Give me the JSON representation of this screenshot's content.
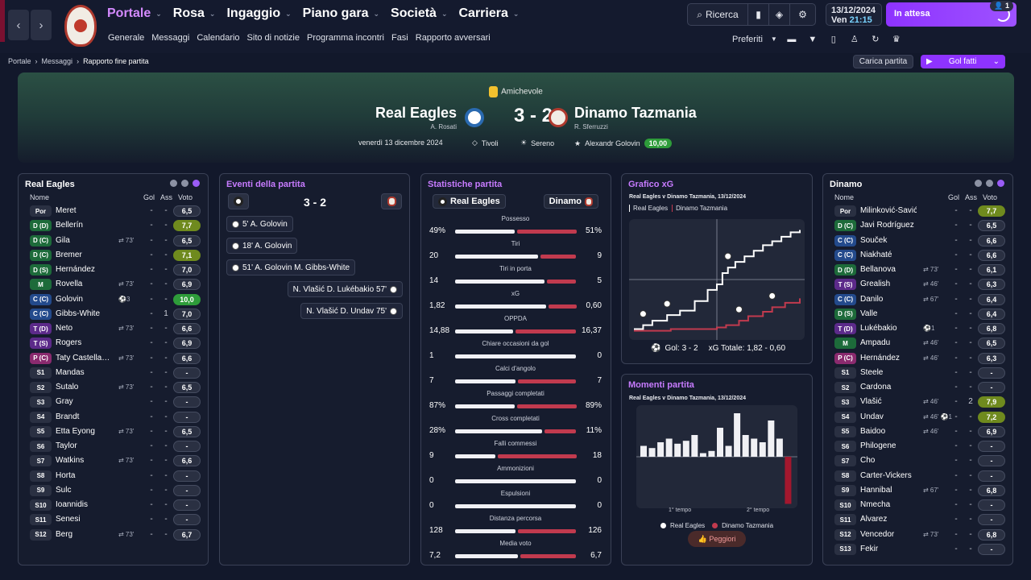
{
  "colors": {
    "accent": "#9a5cf6",
    "home": "#f0f0f4",
    "away": "#c13a4e"
  },
  "nav": {
    "back_icon": "chevron-left-icon",
    "forward_icon": "chevron-right-icon",
    "main": [
      "Portale",
      "Rosa",
      "Ingaggio",
      "Piano gara",
      "Società",
      "Carriera"
    ],
    "sub": [
      "Generale",
      "Messaggi",
      "Calendario",
      "Sito di notizie",
      "Programma incontri",
      "Fasi",
      "Rapporto avversari"
    ],
    "search_label": "Ricerca",
    "date": "13/12/2024",
    "day": "Ven",
    "time": "21:15",
    "waiting_label": "In attesa",
    "waiting_badge": "1",
    "prefs_label": "Preferiti"
  },
  "crumb": {
    "items": [
      "Portale",
      "Messaggi"
    ],
    "current": "Rapporto fine partita"
  },
  "actions": {
    "load_label": "Carica partita",
    "goals_label": "Gol fatti"
  },
  "match": {
    "competition": "Amichevole",
    "home": "Real Eagles",
    "home_manager": "A. Rosati",
    "away": "Dinamo Tazmania",
    "away_manager": "R. Sferruzzi",
    "score": "3 - 2",
    "date": "venerdì 13 dicembre 2024",
    "stadium": "Tivoli",
    "weather": "Sereno",
    "motm": "Alexandr Golovin",
    "motm_rating": "10,00"
  },
  "home_panel": {
    "title": "Real Eagles",
    "headers": {
      "name": "Nome",
      "goals": "Gol",
      "assists": "Ass",
      "rating": "Voto"
    },
    "players": [
      {
        "pos": "Por",
        "name": "Meret",
        "meta": "",
        "g": "-",
        "a": "-",
        "r": "6,5",
        "pc": "#2a3042",
        "rc": ""
      },
      {
        "pos": "D (D)",
        "name": "Bellerín",
        "meta": "",
        "g": "-",
        "a": "-",
        "r": "7,7",
        "pc": "#1d6b3a",
        "rc": "#6f8a1e"
      },
      {
        "pos": "D (C)",
        "name": "Gila",
        "meta": "⇄ 73'",
        "g": "-",
        "a": "-",
        "r": "6,5",
        "pc": "#1d6b3a",
        "rc": ""
      },
      {
        "pos": "D (C)",
        "name": "Bremer",
        "meta": "",
        "g": "-",
        "a": "-",
        "r": "7,1",
        "pc": "#1d6b3a",
        "rc": "#6f8a1e"
      },
      {
        "pos": "D (S)",
        "name": "Hernández",
        "meta": "",
        "g": "-",
        "a": "-",
        "r": "7,0",
        "pc": "#1d6b3a",
        "rc": ""
      },
      {
        "pos": "M",
        "name": "Rovella",
        "meta": "⇄ 73'",
        "g": "-",
        "a": "-",
        "r": "6,9",
        "pc": "#1d6b3a",
        "rc": ""
      },
      {
        "pos": "C (C)",
        "name": "Golovin",
        "meta": "⚽3",
        "g": "-",
        "a": "-",
        "r": "10,0",
        "pc": "#234a8c",
        "rc": "#2e9c3a"
      },
      {
        "pos": "C (C)",
        "name": "Gibbs-White",
        "meta": "",
        "g": "-",
        "a": "1",
        "r": "7,0",
        "pc": "#234a8c",
        "rc": ""
      },
      {
        "pos": "T (D)",
        "name": "Neto",
        "meta": "⇄ 73'",
        "g": "-",
        "a": "-",
        "r": "6,6",
        "pc": "#5c2a8a",
        "rc": ""
      },
      {
        "pos": "T (S)",
        "name": "Rogers",
        "meta": "",
        "g": "-",
        "a": "-",
        "r": "6,9",
        "pc": "#5c2a8a",
        "rc": ""
      },
      {
        "pos": "P (C)",
        "name": "Taty Castella…",
        "meta": "⇄ 73'",
        "g": "-",
        "a": "-",
        "r": "6,6",
        "pc": "#8a2a6e",
        "rc": ""
      },
      {
        "pos": "S1",
        "name": "Mandas",
        "meta": "",
        "g": "-",
        "a": "-",
        "r": "-",
        "pc": "#2a3042",
        "rc": ""
      },
      {
        "pos": "S2",
        "name": "Šutalo",
        "meta": "⇄ 73'",
        "g": "-",
        "a": "-",
        "r": "6,5",
        "pc": "#2a3042",
        "rc": ""
      },
      {
        "pos": "S3",
        "name": "Gray",
        "meta": "",
        "g": "-",
        "a": "-",
        "r": "-",
        "pc": "#2a3042",
        "rc": ""
      },
      {
        "pos": "S4",
        "name": "Brandt",
        "meta": "",
        "g": "-",
        "a": "-",
        "r": "-",
        "pc": "#2a3042",
        "rc": ""
      },
      {
        "pos": "S5",
        "name": "Etta Eyong",
        "meta": "⇄ 73'",
        "g": "-",
        "a": "-",
        "r": "6,5",
        "pc": "#2a3042",
        "rc": ""
      },
      {
        "pos": "S6",
        "name": "Taylor",
        "meta": "",
        "g": "-",
        "a": "-",
        "r": "-",
        "pc": "#2a3042",
        "rc": ""
      },
      {
        "pos": "S7",
        "name": "Watkins",
        "meta": "⇄ 73'",
        "g": "-",
        "a": "-",
        "r": "6,6",
        "pc": "#2a3042",
        "rc": ""
      },
      {
        "pos": "S8",
        "name": "Horta",
        "meta": "",
        "g": "-",
        "a": "-",
        "r": "-",
        "pc": "#2a3042",
        "rc": ""
      },
      {
        "pos": "S9",
        "name": "Šulc",
        "meta": "",
        "g": "-",
        "a": "-",
        "r": "-",
        "pc": "#2a3042",
        "rc": ""
      },
      {
        "pos": "S10",
        "name": "Ioannidis",
        "meta": "",
        "g": "-",
        "a": "-",
        "r": "-",
        "pc": "#2a3042",
        "rc": ""
      },
      {
        "pos": "S11",
        "name": "Senesi",
        "meta": "",
        "g": "-",
        "a": "-",
        "r": "-",
        "pc": "#2a3042",
        "rc": ""
      },
      {
        "pos": "S12",
        "name": "Berg",
        "meta": "⇄ 73'",
        "g": "-",
        "a": "-",
        "r": "6,7",
        "pc": "#2a3042",
        "rc": ""
      }
    ]
  },
  "away_panel": {
    "title": "Dinamo",
    "headers": {
      "name": "Nome",
      "goals": "Gol",
      "assists": "Ass",
      "rating": "Voto"
    },
    "players": [
      {
        "pos": "Por",
        "name": "Milinković-Savić",
        "meta": "",
        "g": "-",
        "a": "-",
        "r": "7,7",
        "pc": "#2a3042",
        "rc": "#6f8a1e"
      },
      {
        "pos": "D (C)",
        "name": "Javi Rodríguez",
        "meta": "",
        "g": "-",
        "a": "-",
        "r": "6,5",
        "pc": "#1d6b3a",
        "rc": ""
      },
      {
        "pos": "C (C)",
        "name": "Souček",
        "meta": "",
        "g": "-",
        "a": "-",
        "r": "6,6",
        "pc": "#234a8c",
        "rc": ""
      },
      {
        "pos": "C (C)",
        "name": "Niakhaté",
        "meta": "",
        "g": "-",
        "a": "-",
        "r": "6,6",
        "pc": "#234a8c",
        "rc": ""
      },
      {
        "pos": "D (D)",
        "name": "Bellanova",
        "meta": "⇄ 73'",
        "g": "-",
        "a": "-",
        "r": "6,1",
        "pc": "#1d6b3a",
        "rc": ""
      },
      {
        "pos": "T (S)",
        "name": "Grealish",
        "meta": "⇄ 46'",
        "g": "-",
        "a": "-",
        "r": "6,3",
        "pc": "#5c2a8a",
        "rc": ""
      },
      {
        "pos": "C (C)",
        "name": "Danilo",
        "meta": "⇄ 67'",
        "g": "-",
        "a": "-",
        "r": "6,4",
        "pc": "#234a8c",
        "rc": ""
      },
      {
        "pos": "D (S)",
        "name": "Valle",
        "meta": "",
        "g": "-",
        "a": "-",
        "r": "6,4",
        "pc": "#1d6b3a",
        "rc": ""
      },
      {
        "pos": "T (D)",
        "name": "Lukébakio",
        "meta": "⚽1",
        "g": "-",
        "a": "-",
        "r": "6,8",
        "pc": "#5c2a8a",
        "rc": ""
      },
      {
        "pos": "M",
        "name": "Ampadu",
        "meta": "⇄ 46'",
        "g": "-",
        "a": "-",
        "r": "6,5",
        "pc": "#1d6b3a",
        "rc": ""
      },
      {
        "pos": "P (C)",
        "name": "Hernández",
        "meta": "⇄ 46'",
        "g": "-",
        "a": "-",
        "r": "6,3",
        "pc": "#8a2a6e",
        "rc": ""
      },
      {
        "pos": "S1",
        "name": "Steele",
        "meta": "",
        "g": "-",
        "a": "-",
        "r": "-",
        "pc": "#2a3042",
        "rc": ""
      },
      {
        "pos": "S2",
        "name": "Cardona",
        "meta": "",
        "g": "-",
        "a": "-",
        "r": "-",
        "pc": "#2a3042",
        "rc": ""
      },
      {
        "pos": "S3",
        "name": "Vlašić",
        "meta": "⇄ 46'",
        "g": "-",
        "a": "2",
        "r": "7,9",
        "pc": "#2a3042",
        "rc": "#6f8a1e"
      },
      {
        "pos": "S4",
        "name": "Undav",
        "meta": "⇄ 46'  ⚽1",
        "g": "-",
        "a": "-",
        "r": "7,2",
        "pc": "#2a3042",
        "rc": "#6f8a1e"
      },
      {
        "pos": "S5",
        "name": "Baidoo",
        "meta": "⇄ 46'",
        "g": "-",
        "a": "-",
        "r": "6,9",
        "pc": "#2a3042",
        "rc": ""
      },
      {
        "pos": "S6",
        "name": "Philogene",
        "meta": "",
        "g": "-",
        "a": "-",
        "r": "-",
        "pc": "#2a3042",
        "rc": ""
      },
      {
        "pos": "S7",
        "name": "Cho",
        "meta": "",
        "g": "-",
        "a": "-",
        "r": "-",
        "pc": "#2a3042",
        "rc": ""
      },
      {
        "pos": "S8",
        "name": "Carter-Vickers",
        "meta": "",
        "g": "-",
        "a": "-",
        "r": "-",
        "pc": "#2a3042",
        "rc": ""
      },
      {
        "pos": "S9",
        "name": "Hannibal",
        "meta": "⇄ 67'",
        "g": "-",
        "a": "-",
        "r": "6,8",
        "pc": "#2a3042",
        "rc": ""
      },
      {
        "pos": "S10",
        "name": "Nmecha",
        "meta": "",
        "g": "-",
        "a": "-",
        "r": "-",
        "pc": "#2a3042",
        "rc": ""
      },
      {
        "pos": "S11",
        "name": "Álvarez",
        "meta": "",
        "g": "-",
        "a": "-",
        "r": "-",
        "pc": "#2a3042",
        "rc": ""
      },
      {
        "pos": "S12",
        "name": "Vencedor",
        "meta": "⇄ 73'",
        "g": "-",
        "a": "-",
        "r": "6,8",
        "pc": "#2a3042",
        "rc": ""
      },
      {
        "pos": "S13",
        "name": "Fekir",
        "meta": "",
        "g": "-",
        "a": "-",
        "r": "-",
        "pc": "#2a3042",
        "rc": ""
      }
    ]
  },
  "events": {
    "title": "Eventi della partita",
    "score": "3 - 2",
    "home": [
      {
        "text": "5'  A. Golovin"
      },
      {
        "text": "18'  A. Golovin"
      },
      {
        "text": "51'  A. Golovin  M. Gibbs-White"
      }
    ],
    "away": [
      {
        "text": "N. Vlašić  D. Lukébakio  57'"
      },
      {
        "text": "N. Vlašić  D. Undav  75'"
      }
    ]
  },
  "stats": {
    "title": "Statistiche partita",
    "home": "Real Eagles",
    "away": "Dinamo",
    "rows": [
      {
        "label": "Possesso",
        "l": "49%",
        "r": "51%",
        "lf": 0.49,
        "rf": 0.51
      },
      {
        "label": "Tiri",
        "l": "20",
        "r": "9",
        "lf": 0.69,
        "rf": 0.31
      },
      {
        "label": "Tiri in porta",
        "l": "14",
        "r": "5",
        "lf": 0.74,
        "rf": 0.26
      },
      {
        "label": "xG",
        "l": "1,82",
        "r": "0,60",
        "lf": 0.75,
        "rf": 0.25
      },
      {
        "label": "OPPDA",
        "l": "14,88",
        "r": "16,37",
        "lf": 0.48,
        "rf": 0.52
      },
      {
        "label": "Chiare occasioni da gol",
        "l": "1",
        "r": "0",
        "lf": 1.0,
        "rf": 0.0
      },
      {
        "label": "Calci d'angolo",
        "l": "7",
        "r": "7",
        "lf": 0.5,
        "rf": 0.5
      },
      {
        "label": "Passaggi completati",
        "l": "87%",
        "r": "89%",
        "lf": 0.49,
        "rf": 0.51
      },
      {
        "label": "Cross completati",
        "l": "28%",
        "r": "11%",
        "lf": 0.72,
        "rf": 0.28
      },
      {
        "label": "Falli commessi",
        "l": "9",
        "r": "18",
        "lf": 0.33,
        "rf": 0.67
      },
      {
        "label": "Ammonizioni",
        "l": "0",
        "r": "0",
        "lf": 0.0,
        "rf": 0.0
      },
      {
        "label": "Espulsioni",
        "l": "0",
        "r": "0",
        "lf": 0.0,
        "rf": 0.0
      },
      {
        "label": "Distanza percorsa",
        "l": "128",
        "r": "126",
        "lf": 0.5,
        "rf": 0.5
      },
      {
        "label": "Media voto",
        "l": "7,2",
        "r": "6,7",
        "lf": 0.52,
        "rf": 0.48
      }
    ]
  },
  "xg": {
    "title": "Grafico xG",
    "subtitle": "Real Eagles v Dinamo Tazmania, 13/12/2024",
    "legend_home": "Real Eagles",
    "legend_away": "Dinamo Tazmania",
    "footer_goals": "Gol: 3 - 2",
    "footer_xg": "xG  Totale: 1,82  -  0,60"
  },
  "momentum": {
    "title": "Momenti partita",
    "subtitle": "Real Eagles v Dinamo Tazmania, 13/12/2024",
    "half1": "1° tempo",
    "half2": "2° tempo",
    "legend_home": "Real Eagles",
    "legend_away": "Dinamo Tazmania",
    "worst_label": "Peggiori"
  },
  "chart_data": [
    {
      "type": "line",
      "title": "Grafico xG",
      "series": [
        {
          "name": "Real Eagles",
          "x": [
            0,
            5,
            10,
            18,
            25,
            33,
            40,
            45,
            48,
            51,
            55,
            60,
            65,
            70,
            75,
            80,
            85,
            90
          ],
          "y": [
            0.05,
            0.12,
            0.2,
            0.3,
            0.38,
            0.55,
            0.75,
            0.85,
            1.05,
            1.15,
            1.25,
            1.35,
            1.45,
            1.55,
            1.62,
            1.7,
            1.78,
            1.82
          ]
        },
        {
          "name": "Dinamo Tazmania",
          "x": [
            0,
            20,
            45,
            50,
            57,
            62,
            70,
            75,
            82,
            90
          ],
          "y": [
            0.02,
            0.05,
            0.08,
            0.12,
            0.2,
            0.28,
            0.36,
            0.44,
            0.52,
            0.6
          ]
        }
      ],
      "goals": [
        {
          "team": "Real Eagles",
          "minute": 5
        },
        {
          "team": "Real Eagles",
          "minute": 18
        },
        {
          "team": "Real Eagles",
          "minute": 51
        },
        {
          "team": "Dinamo Tazmania",
          "minute": 57
        },
        {
          "team": "Dinamo Tazmania",
          "minute": 75
        }
      ]
    },
    {
      "type": "bar",
      "title": "Momenti partita",
      "categories": [
        "1",
        "2",
        "3",
        "4",
        "5",
        "6",
        "7",
        "8",
        "9",
        "10",
        "11",
        "12",
        "13",
        "14",
        "15",
        "16",
        "17",
        "18"
      ],
      "series": [
        {
          "name": "Momentum",
          "values": [
            0.15,
            0.12,
            0.2,
            0.25,
            0.18,
            0.22,
            0.3,
            0.05,
            0.08,
            0.4,
            0.15,
            0.6,
            0.3,
            0.25,
            0.2,
            0.5,
            0.25,
            -0.65
          ]
        }
      ]
    }
  ]
}
